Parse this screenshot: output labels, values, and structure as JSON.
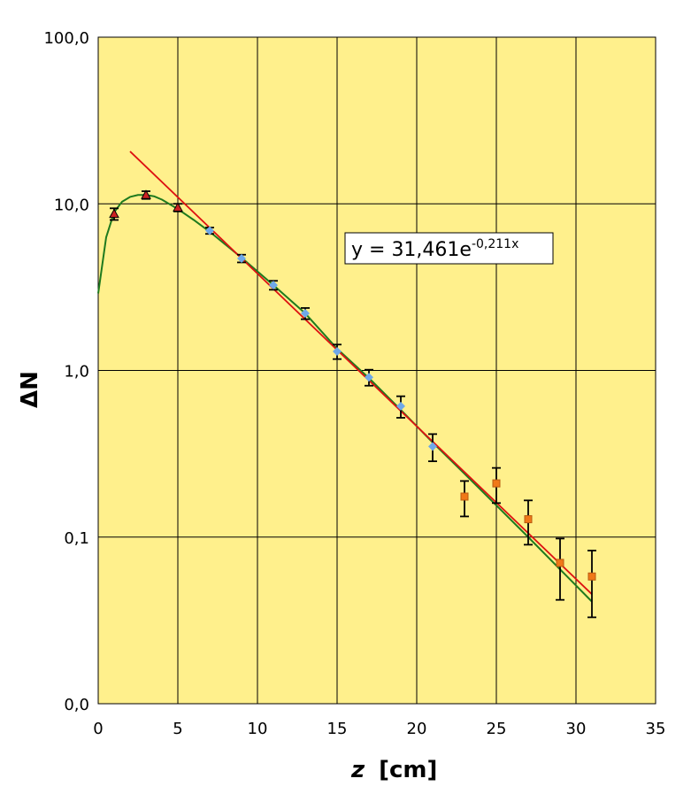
{
  "chart_data": {
    "type": "scatter",
    "title": "",
    "xlabel": "z",
    "xlabel_unit": "[cm]",
    "ylabel": "ΔN",
    "xlim": [
      0,
      35
    ],
    "ylim": [
      0.01,
      100
    ],
    "yscale": "log",
    "grid": true,
    "background": "#FFF08C",
    "x_ticks": [
      0,
      5,
      10,
      15,
      20,
      25,
      30,
      35
    ],
    "x_tick_labels": [
      "0",
      "5",
      "10",
      "15",
      "20",
      "25",
      "30",
      "35"
    ],
    "y_ticks": [
      0.01,
      0.1,
      1,
      10,
      100
    ],
    "y_tick_labels": [
      "0,0",
      "0,1",
      "1,0",
      "10,0",
      "100,0"
    ],
    "series": [
      {
        "marker": "triangle",
        "color": "#CC2222",
        "x": [
          1,
          3,
          5
        ],
        "y": [
          8.7,
          11.3,
          9.5
        ],
        "err": [
          0.7,
          0.6,
          0.5
        ]
      },
      {
        "marker": "diamond",
        "color": "#6FA8E8",
        "x": [
          7,
          9,
          11,
          13,
          15,
          17,
          19,
          21
        ],
        "y": [
          6.9,
          4.7,
          3.25,
          2.2,
          1.3,
          0.91,
          0.61,
          0.35
        ],
        "err": [
          0.3,
          0.25,
          0.2,
          0.17,
          0.13,
          0.1,
          0.09,
          0.065
        ]
      },
      {
        "marker": "square",
        "color": "#F07818",
        "x": [
          23,
          25,
          27,
          29,
          31
        ],
        "y": [
          0.175,
          0.21,
          0.128,
          0.07,
          0.058
        ],
        "err": [
          0.042,
          0.05,
          0.038,
          0.028,
          0.025
        ]
      }
    ],
    "trendline": {
      "type": "exponential",
      "color": "#DD1111",
      "a": 31.461,
      "b": -0.211,
      "x_range": [
        2,
        31
      ],
      "label": "y = 31,461e",
      "label_exponent": "-0,211x"
    },
    "fit_curve": {
      "color": "#1E7A1E",
      "x": [
        0,
        0.5,
        1,
        1.5,
        2,
        2.5,
        3,
        3.5,
        4,
        5,
        6,
        7,
        9,
        11,
        13,
        15,
        17,
        19,
        21,
        23,
        25,
        27,
        29,
        31
      ],
      "y": [
        2.9,
        6.3,
        8.9,
        10.3,
        11.0,
        11.3,
        11.3,
        11.1,
        10.6,
        9.3,
        8.0,
        6.8,
        4.75,
        3.25,
        2.2,
        1.35,
        0.9,
        0.58,
        0.37,
        0.24,
        0.155,
        0.1,
        0.064,
        0.041
      ]
    }
  }
}
